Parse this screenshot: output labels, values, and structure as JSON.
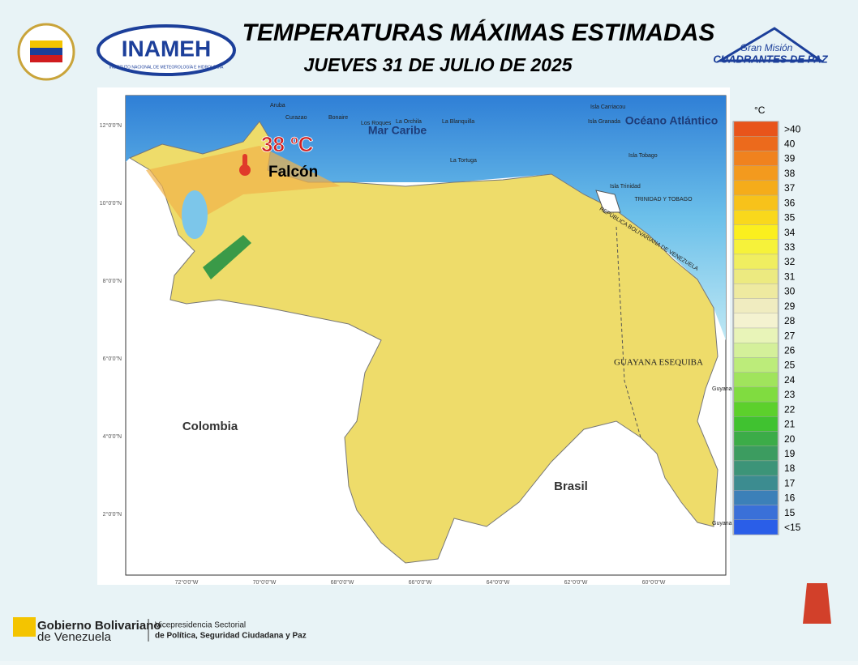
{
  "header": {
    "title": "TEMPERATURAS MÁXIMAS ESTIMADAS",
    "subtitle": "JUEVES 31 DE JULIO DE 2025",
    "logo_left": "INAMEH",
    "logo_left_caption": "INSTITUTO NACIONAL DE METEOROLOGÍA E HIDROLOGÍA",
    "logo_right_top": "Gran Misión",
    "logo_right_bottom": "CUADRANTES DE PAZ"
  },
  "map": {
    "sea_north": "Mar Caribe",
    "ocean": "Océano Atlántico",
    "west": "Colombia",
    "south": "Brasil",
    "claim": "GUAYANA ESEQUIBA",
    "tt": "TRINIDAD Y TOBAGO",
    "border": "REPÚBLICA BOLIVARIANA DE VENEZUELA",
    "highlight_value": "38 ºC",
    "highlight_place": "Falcón",
    "islands": [
      "Aruba",
      "Curazao",
      "Bonaire",
      "Los Roques",
      "La Orchila",
      "La Blanquilla",
      "La Tortuga",
      "Isla Carriacou",
      "Isla Granada",
      "Isla Tobago",
      "Isla Trinidad",
      "Guyana",
      "Guyana"
    ],
    "lat_labels": [
      "12°0'0\"N",
      "10°0'0\"N",
      "8°0'0\"N",
      "6°0'0\"N",
      "4°0'0\"N",
      "2°0'0\"N"
    ],
    "lon_labels": [
      "72°0'0\"W",
      "70°0'0\"W",
      "68°0'0\"W",
      "66°0'0\"W",
      "64°0'0\"W",
      "62°0'0\"W",
      "60°0'0\"W"
    ]
  },
  "legend": {
    "unit": "°C",
    "items": [
      {
        "label": ">40",
        "color": "#e8541a"
      },
      {
        "label": "40",
        "color": "#ec6a1c"
      },
      {
        "label": "39",
        "color": "#f0821e"
      },
      {
        "label": "38",
        "color": "#f39a1e"
      },
      {
        "label": "37",
        "color": "#f5ac1a"
      },
      {
        "label": "36",
        "color": "#f7c21a"
      },
      {
        "label": "35",
        "color": "#f9d81c"
      },
      {
        "label": "34",
        "color": "#fbef1e"
      },
      {
        "label": "33",
        "color": "#f6f23a"
      },
      {
        "label": "32",
        "color": "#f0ee60"
      },
      {
        "label": "31",
        "color": "#ecea80"
      },
      {
        "label": "30",
        "color": "#eeeaa0"
      },
      {
        "label": "29",
        "color": "#f0ecc0"
      },
      {
        "label": "28",
        "color": "#f4f2d0"
      },
      {
        "label": "27",
        "color": "#e8f4b8"
      },
      {
        "label": "26",
        "color": "#d4f09a"
      },
      {
        "label": "25",
        "color": "#bcec7a"
      },
      {
        "label": "24",
        "color": "#a0e45c"
      },
      {
        "label": "23",
        "color": "#80dc40"
      },
      {
        "label": "22",
        "color": "#5cd02c"
      },
      {
        "label": "21",
        "color": "#40c230"
      },
      {
        "label": "20",
        "color": "#3cac48"
      },
      {
        "label": "19",
        "color": "#3c9c60"
      },
      {
        "label": "18",
        "color": "#3c9478"
      },
      {
        "label": "17",
        "color": "#3c8c90"
      },
      {
        "label": "16",
        "color": "#3c80b8"
      },
      {
        "label": "15",
        "color": "#3a70d8"
      },
      {
        "label": "<15",
        "color": "#2a5ee8"
      }
    ]
  },
  "footer": {
    "gov_line1": "Gobierno Bolivariano",
    "gov_line2": "de Venezuela",
    "vp_line1": "Vicepresidencia Sectorial",
    "vp_line2": "de Política, Seguridad Ciudadana y Paz"
  }
}
